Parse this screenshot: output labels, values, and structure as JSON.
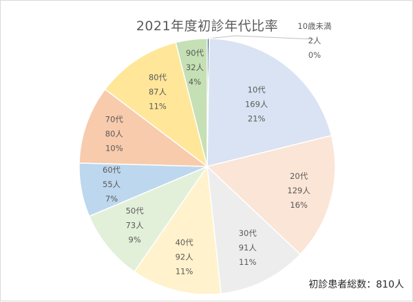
{
  "chart_data": {
    "type": "pie",
    "title": "2021年度初診年代比率",
    "total_label": "初診患者総数：810人",
    "slices": [
      {
        "label": "10歳未満",
        "count": "2人",
        "percent": "0%",
        "value": 2,
        "color": "#2f5597"
      },
      {
        "label": "10代",
        "count": "169人",
        "percent": "21%",
        "value": 169,
        "color": "#dae3f3"
      },
      {
        "label": "20代",
        "count": "129人",
        "percent": "16%",
        "value": 129,
        "color": "#fbe5d6"
      },
      {
        "label": "30代",
        "count": "91人",
        "percent": "11%",
        "value": 91,
        "color": "#ededed"
      },
      {
        "label": "40代",
        "count": "92人",
        "percent": "11%",
        "value": 92,
        "color": "#fff2cc"
      },
      {
        "label": "50代",
        "count": "73人",
        "percent": "9%",
        "value": 73,
        "color": "#e2f0d9"
      },
      {
        "label": "60代",
        "count": "55人",
        "percent": "7%",
        "value": 55,
        "color": "#bdd7ee"
      },
      {
        "label": "70代",
        "count": "80人",
        "percent": "10%",
        "value": 80,
        "color": "#f8cbad"
      },
      {
        "label": "80代",
        "count": "87人",
        "percent": "11%",
        "value": 87,
        "color": "#ffe699"
      },
      {
        "label": "90代",
        "count": "32人",
        "percent": "4%",
        "value": 32,
        "color": "#c5e0b4"
      }
    ]
  }
}
